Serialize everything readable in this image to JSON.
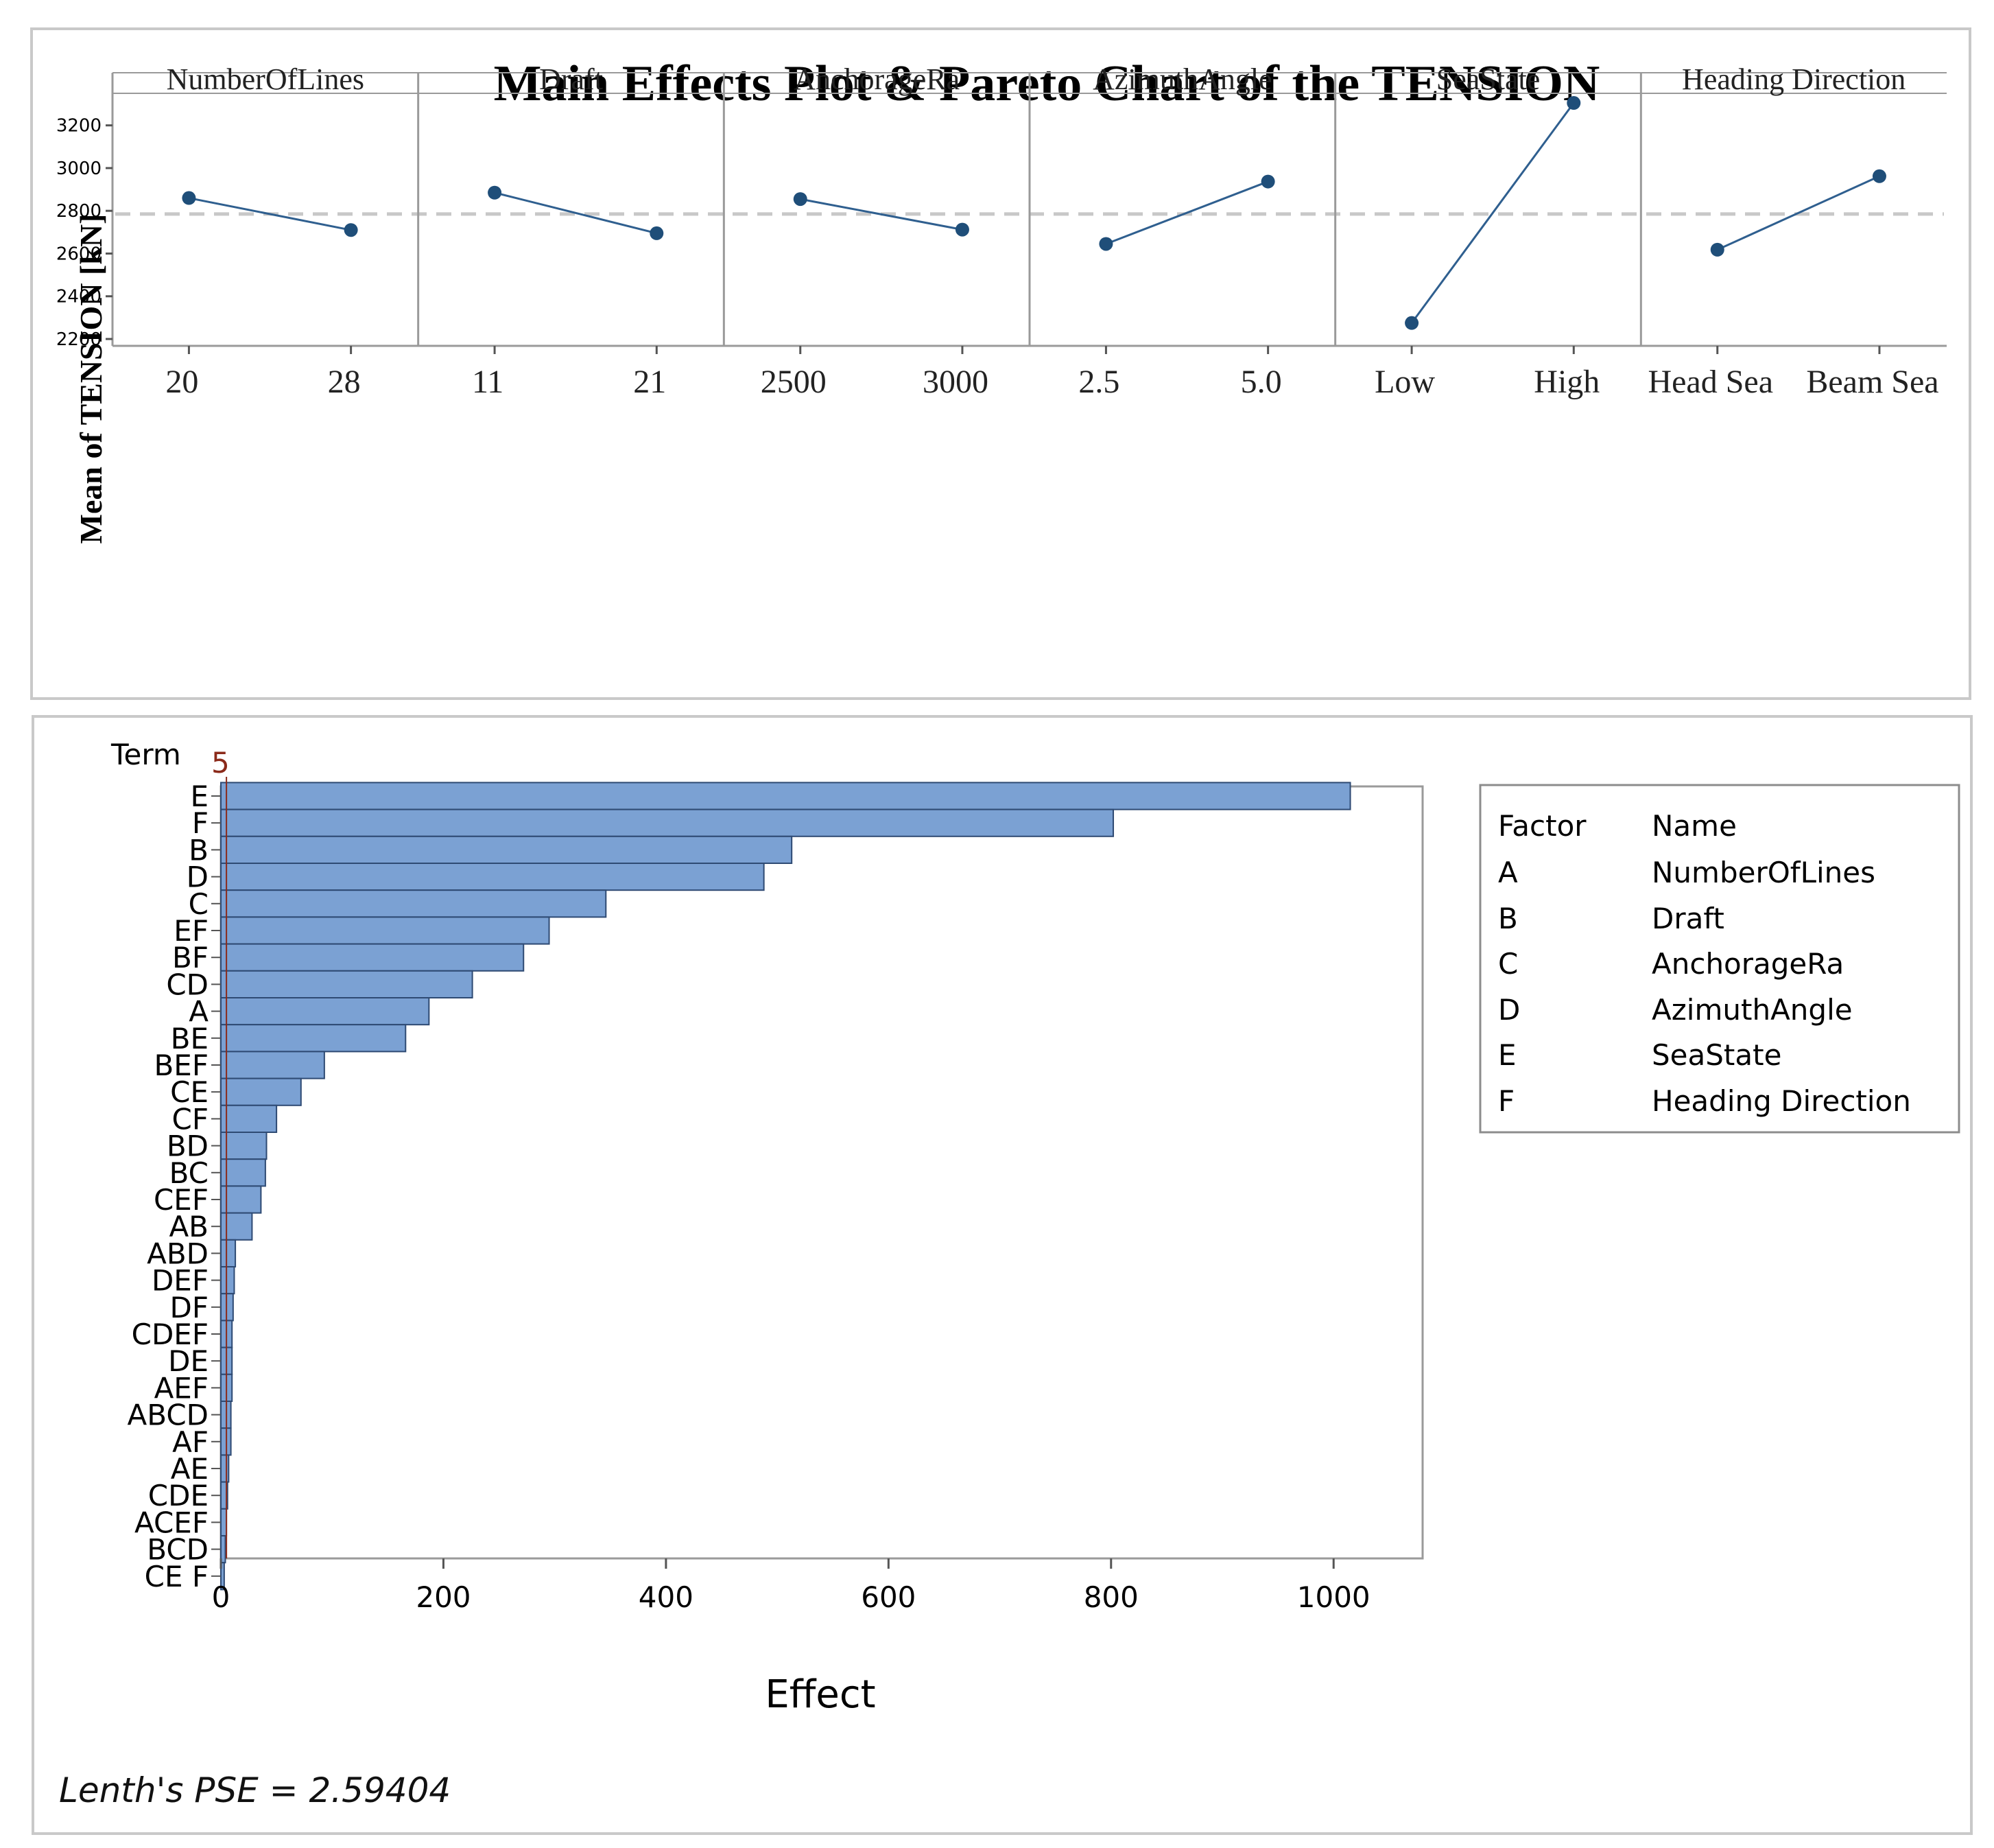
{
  "main_effects": {
    "title": "Main Effects Plot & Pareto Chart of the TENSION",
    "ylabel": "Mean of TENSION [kN]"
  },
  "pareto": {
    "term_header": "Term",
    "alpha_label": "5",
    "xlabel": "Effect",
    "footnote": "Lenth's PSE = 2.59404",
    "legend": {
      "header_factor": "Factor",
      "header_name": "Name",
      "rows": [
        {
          "factor": "A",
          "name": "NumberOfLines"
        },
        {
          "factor": "B",
          "name": "Draft"
        },
        {
          "factor": "C",
          "name": "AnchorageRa"
        },
        {
          "factor": "D",
          "name": "AzimuthAngle"
        },
        {
          "factor": "E",
          "name": "SeaState"
        },
        {
          "factor": "F",
          "name": "Heading Direction"
        }
      ]
    }
  },
  "colors": {
    "line": "#2f5f8f",
    "marker": "#1f4e79",
    "bar_fill": "#7ba1d3",
    "bar_stroke": "#2e4a73",
    "reference_line": "#c8c8c8",
    "frame": "#9a9a9a"
  },
  "chart_data": [
    {
      "type": "line",
      "title": "Main Effects Plot & Pareto Chart of the TENSION",
      "ylabel": "Mean of TENSION [kN]",
      "ylim": [
        2200,
        3350
      ],
      "yticks": [
        2200,
        2400,
        2600,
        2800,
        3000,
        3200
      ],
      "reference_mean": 2785,
      "grid": false,
      "panels": [
        {
          "factor": "NumberOfLines",
          "levels": [
            "20",
            "28"
          ],
          "values": [
            2860,
            2710
          ]
        },
        {
          "factor": "Draft",
          "levels": [
            "11",
            "21"
          ],
          "values": [
            2885,
            2695
          ]
        },
        {
          "factor": "AnchorageRa",
          "levels": [
            "2500",
            "3000"
          ],
          "values": [
            2855,
            2712
          ]
        },
        {
          "factor": "AzimuthAngle",
          "levels": [
            "2.5",
            "5.0"
          ],
          "values": [
            2645,
            2937
          ]
        },
        {
          "factor": "SeaState",
          "levels": [
            "Low",
            "High"
          ],
          "values": [
            2275,
            3305
          ]
        },
        {
          "factor": "Heading Direction",
          "levels": [
            "Head Sea",
            "Beam Sea"
          ],
          "values": [
            2618,
            2962
          ]
        }
      ]
    },
    {
      "type": "bar",
      "orientation": "horizontal",
      "xlabel": "Effect",
      "ylabel": "Term",
      "xlim": [
        0,
        1080
      ],
      "xticks": [
        0,
        200,
        400,
        600,
        800,
        1000
      ],
      "reference_line": 5,
      "reference_label": "5",
      "categories": [
        "E",
        "F",
        "B",
        "D",
        "C",
        "EF",
        "BF",
        "CD",
        "A",
        "BE",
        "BEF",
        "CE",
        "CF",
        "BD",
        "BC",
        "CEF",
        "AB",
        "ABD",
        "DEF",
        "DF",
        "CDEF",
        "DE",
        "AEF",
        "ABCD",
        "AF",
        "AE",
        "CDE",
        "ACEF",
        "BCD",
        "CE F"
      ],
      "values": [
        1015,
        802,
        513,
        488,
        346,
        295,
        272,
        226,
        187,
        166,
        93,
        72,
        50,
        41,
        40,
        36,
        28,
        13,
        12,
        11,
        10,
        10,
        10,
        9,
        9,
        7,
        6,
        5,
        4,
        3
      ]
    }
  ]
}
